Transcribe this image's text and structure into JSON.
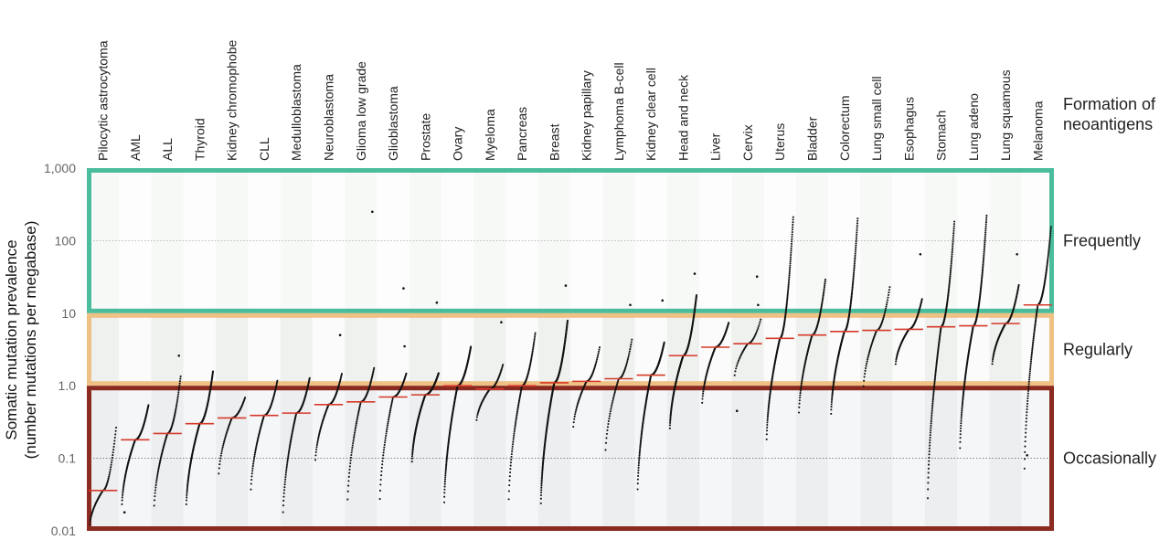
{
  "chart_data": {
    "type": "scatter",
    "title": "",
    "ylabel_line1": "Somatic mutation prevalence",
    "ylabel_line2": "(number mutations per megabase)",
    "yscale": "log",
    "ylim": [
      0.01,
      1000
    ],
    "yticks": [
      {
        "value": 0.01,
        "label": "0.01"
      },
      {
        "value": 0.1,
        "label": "0.1"
      },
      {
        "value": 1,
        "label": "1.0"
      },
      {
        "value": 10,
        "label": "10"
      },
      {
        "value": 100,
        "label": "100"
      },
      {
        "value": 1000,
        "label": "1,000"
      }
    ],
    "dotted_gridlines": [
      0.1,
      100
    ],
    "right_header_line1": "Formation of",
    "right_header_line2": "neoantigens",
    "bands": [
      {
        "label": "Frequently",
        "from": 10,
        "to": 1000,
        "color": "#4bbd9c"
      },
      {
        "label": "Regularly",
        "from": 1,
        "to": 10,
        "color": "#efc184"
      },
      {
        "label": "Occasionally",
        "from": 0.01,
        "to": 1,
        "color": "#8a2a20"
      }
    ],
    "median_color": "#d63a2a",
    "categories": [
      {
        "name": "Pilocytic astrocytoma",
        "median": 0.036,
        "min": 0.011,
        "max": 0.28,
        "n": 70,
        "outliers": []
      },
      {
        "name": "AML",
        "median": 0.18,
        "min": 0.02,
        "max": 0.55,
        "n": 130,
        "outliers": [
          0.018
        ]
      },
      {
        "name": "ALL",
        "median": 0.22,
        "min": 0.018,
        "max": 1.4,
        "n": 90,
        "outliers": [
          2.6
        ]
      },
      {
        "name": "Thyroid",
        "median": 0.3,
        "min": 0.02,
        "max": 1.6,
        "n": 190,
        "outliers": []
      },
      {
        "name": "Kidney chromophobe",
        "median": 0.36,
        "min": 0.05,
        "max": 0.7,
        "n": 60,
        "outliers": []
      },
      {
        "name": "CLL",
        "median": 0.39,
        "min": 0.03,
        "max": 1.2,
        "n": 90,
        "outliers": []
      },
      {
        "name": "Medulloblastoma",
        "median": 0.42,
        "min": 0.014,
        "max": 1.3,
        "n": 110,
        "outliers": []
      },
      {
        "name": "Neuroblastoma",
        "median": 0.55,
        "min": 0.08,
        "max": 1.5,
        "n": 80,
        "outliers": [
          5.0
        ]
      },
      {
        "name": "Glioma low grade",
        "median": 0.6,
        "min": 0.02,
        "max": 1.8,
        "n": 80,
        "outliers": [
          250
        ]
      },
      {
        "name": "Glioblastoma",
        "median": 0.7,
        "min": 0.02,
        "max": 1.5,
        "n": 80,
        "outliers": [
          3.5,
          22
        ]
      },
      {
        "name": "Prostate",
        "median": 0.75,
        "min": 0.08,
        "max": 1.5,
        "n": 210,
        "outliers": [
          14
        ]
      },
      {
        "name": "Ovary",
        "median": 1.0,
        "min": 0.02,
        "max": 3.5,
        "n": 200,
        "outliers": []
      },
      {
        "name": "Myeloma",
        "median": 0.9,
        "min": 0.3,
        "max": 2.0,
        "n": 60,
        "outliers": [
          7.5
        ]
      },
      {
        "name": "Pancreas",
        "median": 1.0,
        "min": 0.02,
        "max": 5.5,
        "n": 100,
        "outliers": []
      },
      {
        "name": "Breast",
        "median": 1.1,
        "min": 0.02,
        "max": 8.0,
        "n": 280,
        "outliers": [
          24
        ]
      },
      {
        "name": "Kidney papillary",
        "median": 1.15,
        "min": 0.23,
        "max": 3.5,
        "n": 60,
        "outliers": []
      },
      {
        "name": "Lymphoma B-cell",
        "median": 1.25,
        "min": 0.1,
        "max": 4.5,
        "n": 60,
        "outliers": [
          13
        ]
      },
      {
        "name": "Kidney clear cell",
        "median": 1.4,
        "min": 0.03,
        "max": 4.0,
        "n": 180,
        "outliers": [
          15
        ]
      },
      {
        "name": "Head and neck",
        "median": 2.6,
        "min": 0.23,
        "max": 18,
        "n": 240,
        "outliers": [
          35
        ]
      },
      {
        "name": "Liver",
        "median": 3.4,
        "min": 0.5,
        "max": 7.5,
        "n": 100,
        "outliers": []
      },
      {
        "name": "Cervix",
        "median": 3.8,
        "min": 1.2,
        "max": 8.5,
        "n": 40,
        "outliers": [
          0.45,
          13,
          32
        ]
      },
      {
        "name": "Uterus",
        "median": 4.5,
        "min": 0.15,
        "max": 220,
        "n": 180,
        "outliers": []
      },
      {
        "name": "Bladder",
        "median": 5.0,
        "min": 0.35,
        "max": 30,
        "n": 110,
        "outliers": []
      },
      {
        "name": "Colorectum",
        "median": 5.6,
        "min": 0.35,
        "max": 210,
        "n": 180,
        "outliers": []
      },
      {
        "name": "Lung small cell",
        "median": 5.8,
        "min": 0.8,
        "max": 24,
        "n": 60,
        "outliers": []
      },
      {
        "name": "Esophagus",
        "median": 6.0,
        "min": 1.8,
        "max": 16,
        "n": 90,
        "outliers": [
          65
        ]
      },
      {
        "name": "Stomach",
        "median": 6.5,
        "min": 0.02,
        "max": 190,
        "n": 170,
        "outliers": []
      },
      {
        "name": "Lung adeno",
        "median": 6.7,
        "min": 0.11,
        "max": 230,
        "n": 190,
        "outliers": []
      },
      {
        "name": "Lung squamous",
        "median": 7.2,
        "min": 1.8,
        "max": 25,
        "n": 110,
        "outliers": [
          65
        ]
      },
      {
        "name": "Melanoma",
        "median": 13,
        "min": 0.05,
        "max": 160,
        "n": 140,
        "outliers": [
          0.11
        ]
      }
    ]
  }
}
